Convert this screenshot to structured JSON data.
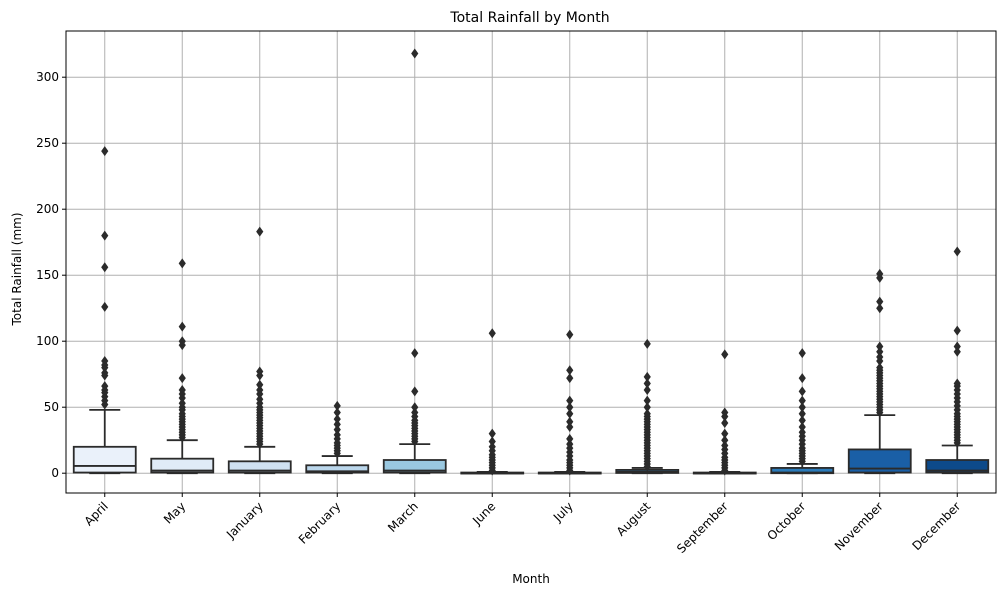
{
  "chart_data": {
    "type": "box",
    "title": "Total Rainfall by Month",
    "xlabel": "Month",
    "ylabel": "Total Rainfall (mm)",
    "ylim": [
      -15,
      335
    ],
    "yticks": [
      0,
      50,
      100,
      150,
      200,
      250,
      300
    ],
    "grid": true,
    "categories": [
      "April",
      "May",
      "January",
      "February",
      "March",
      "June",
      "July",
      "August",
      "September",
      "October",
      "November",
      "December"
    ],
    "boxes": [
      {
        "month": "April",
        "min": 0,
        "q1": 0.5,
        "median": 5.5,
        "q3": 20,
        "whisker_high": 48,
        "color": "#eaf1fa",
        "outliers": [
          52,
          55,
          58,
          61,
          63,
          66,
          74,
          76,
          80,
          82,
          85,
          126,
          156,
          180,
          244
        ]
      },
      {
        "month": "May",
        "min": 0,
        "q1": 0.5,
        "median": 2,
        "q3": 11,
        "whisker_high": 25,
        "color": "#e0ebf7",
        "outliers": [
          27,
          29,
          31,
          33,
          35,
          37,
          39,
          41,
          43,
          45,
          48,
          50,
          53,
          57,
          60,
          63,
          72,
          97,
          100,
          111,
          159
        ]
      },
      {
        "month": "January",
        "min": 0,
        "q1": 0.5,
        "median": 2,
        "q3": 9,
        "whisker_high": 20,
        "color": "#d0e1f2",
        "outliers": [
          22,
          24,
          26,
          28,
          30,
          32,
          34,
          36,
          38,
          40,
          42,
          44,
          46,
          48,
          50,
          53,
          56,
          60,
          63,
          67,
          74,
          77,
          183
        ]
      },
      {
        "month": "February",
        "min": 0,
        "q1": 0.5,
        "median": 1.5,
        "q3": 6,
        "whisker_high": 13,
        "color": "#bad6eb",
        "outliers": [
          15,
          17,
          19,
          21,
          23,
          26,
          29,
          33,
          37,
          41,
          46,
          51
        ]
      },
      {
        "month": "March",
        "min": 0,
        "q1": 0.5,
        "median": 2,
        "q3": 10,
        "whisker_high": 22,
        "color": "#9ac8e0",
        "outliers": [
          24,
          26,
          28,
          30,
          32,
          34,
          36,
          38,
          40,
          43,
          46,
          50,
          62,
          91,
          318
        ]
      },
      {
        "month": "June",
        "min": 0,
        "q1": 0,
        "median": 0,
        "q3": 0.5,
        "whisker_high": 1,
        "color": "#73b2d8",
        "outliers": [
          2,
          4,
          6,
          8,
          10,
          12,
          14,
          17,
          20,
          24,
          30,
          106
        ]
      },
      {
        "month": "July",
        "min": 0,
        "q1": 0,
        "median": 0,
        "q3": 0.5,
        "whisker_high": 1,
        "color": "#529dcc",
        "outliers": [
          2,
          4,
          6,
          8,
          10,
          13,
          16,
          19,
          22,
          26,
          35,
          39,
          45,
          50,
          55,
          72,
          78,
          105
        ]
      },
      {
        "month": "August",
        "min": 0,
        "q1": 0.2,
        "median": 1,
        "q3": 2.5,
        "whisker_high": 4,
        "color": "#3686c0",
        "outliers": [
          5,
          7,
          9,
          11,
          13,
          15,
          17,
          19,
          21,
          23,
          25,
          27,
          29,
          31,
          33,
          35,
          37,
          39,
          41,
          43,
          45,
          50,
          55,
          63,
          68,
          73,
          98
        ]
      },
      {
        "month": "September",
        "min": 0,
        "q1": 0,
        "median": 0,
        "q3": 0.5,
        "whisker_high": 1,
        "color": "#1f6eb3",
        "outliers": [
          2,
          4,
          6,
          8,
          10,
          12,
          15,
          18,
          21,
          25,
          30,
          38,
          43,
          46,
          90
        ]
      },
      {
        "month": "October",
        "min": 0,
        "q1": 0,
        "median": 0.5,
        "q3": 4,
        "whisker_high": 7,
        "color": "#2b7bba",
        "outliers": [
          9,
          11,
          13,
          15,
          17,
          19,
          22,
          25,
          28,
          31,
          35,
          40,
          45,
          50,
          55,
          62,
          72,
          91
        ]
      },
      {
        "month": "November",
        "min": 0,
        "q1": 0.5,
        "median": 3.5,
        "q3": 18,
        "whisker_high": 44,
        "color": "#1a5fa6",
        "outliers": [
          46,
          48,
          50,
          52,
          54,
          56,
          58,
          60,
          62,
          64,
          66,
          68,
          70,
          72,
          74,
          76,
          78,
          80,
          85,
          88,
          92,
          96,
          125,
          130,
          148,
          151
        ]
      },
      {
        "month": "December",
        "min": 0,
        "q1": 0.5,
        "median": 2,
        "q3": 10,
        "whisker_high": 21,
        "color": "#0d4a8a",
        "outliers": [
          23,
          25,
          27,
          29,
          31,
          33,
          35,
          37,
          39,
          41,
          43,
          45,
          48,
          51,
          54,
          57,
          60,
          63,
          66,
          68,
          92,
          96,
          108,
          168
        ]
      }
    ]
  }
}
